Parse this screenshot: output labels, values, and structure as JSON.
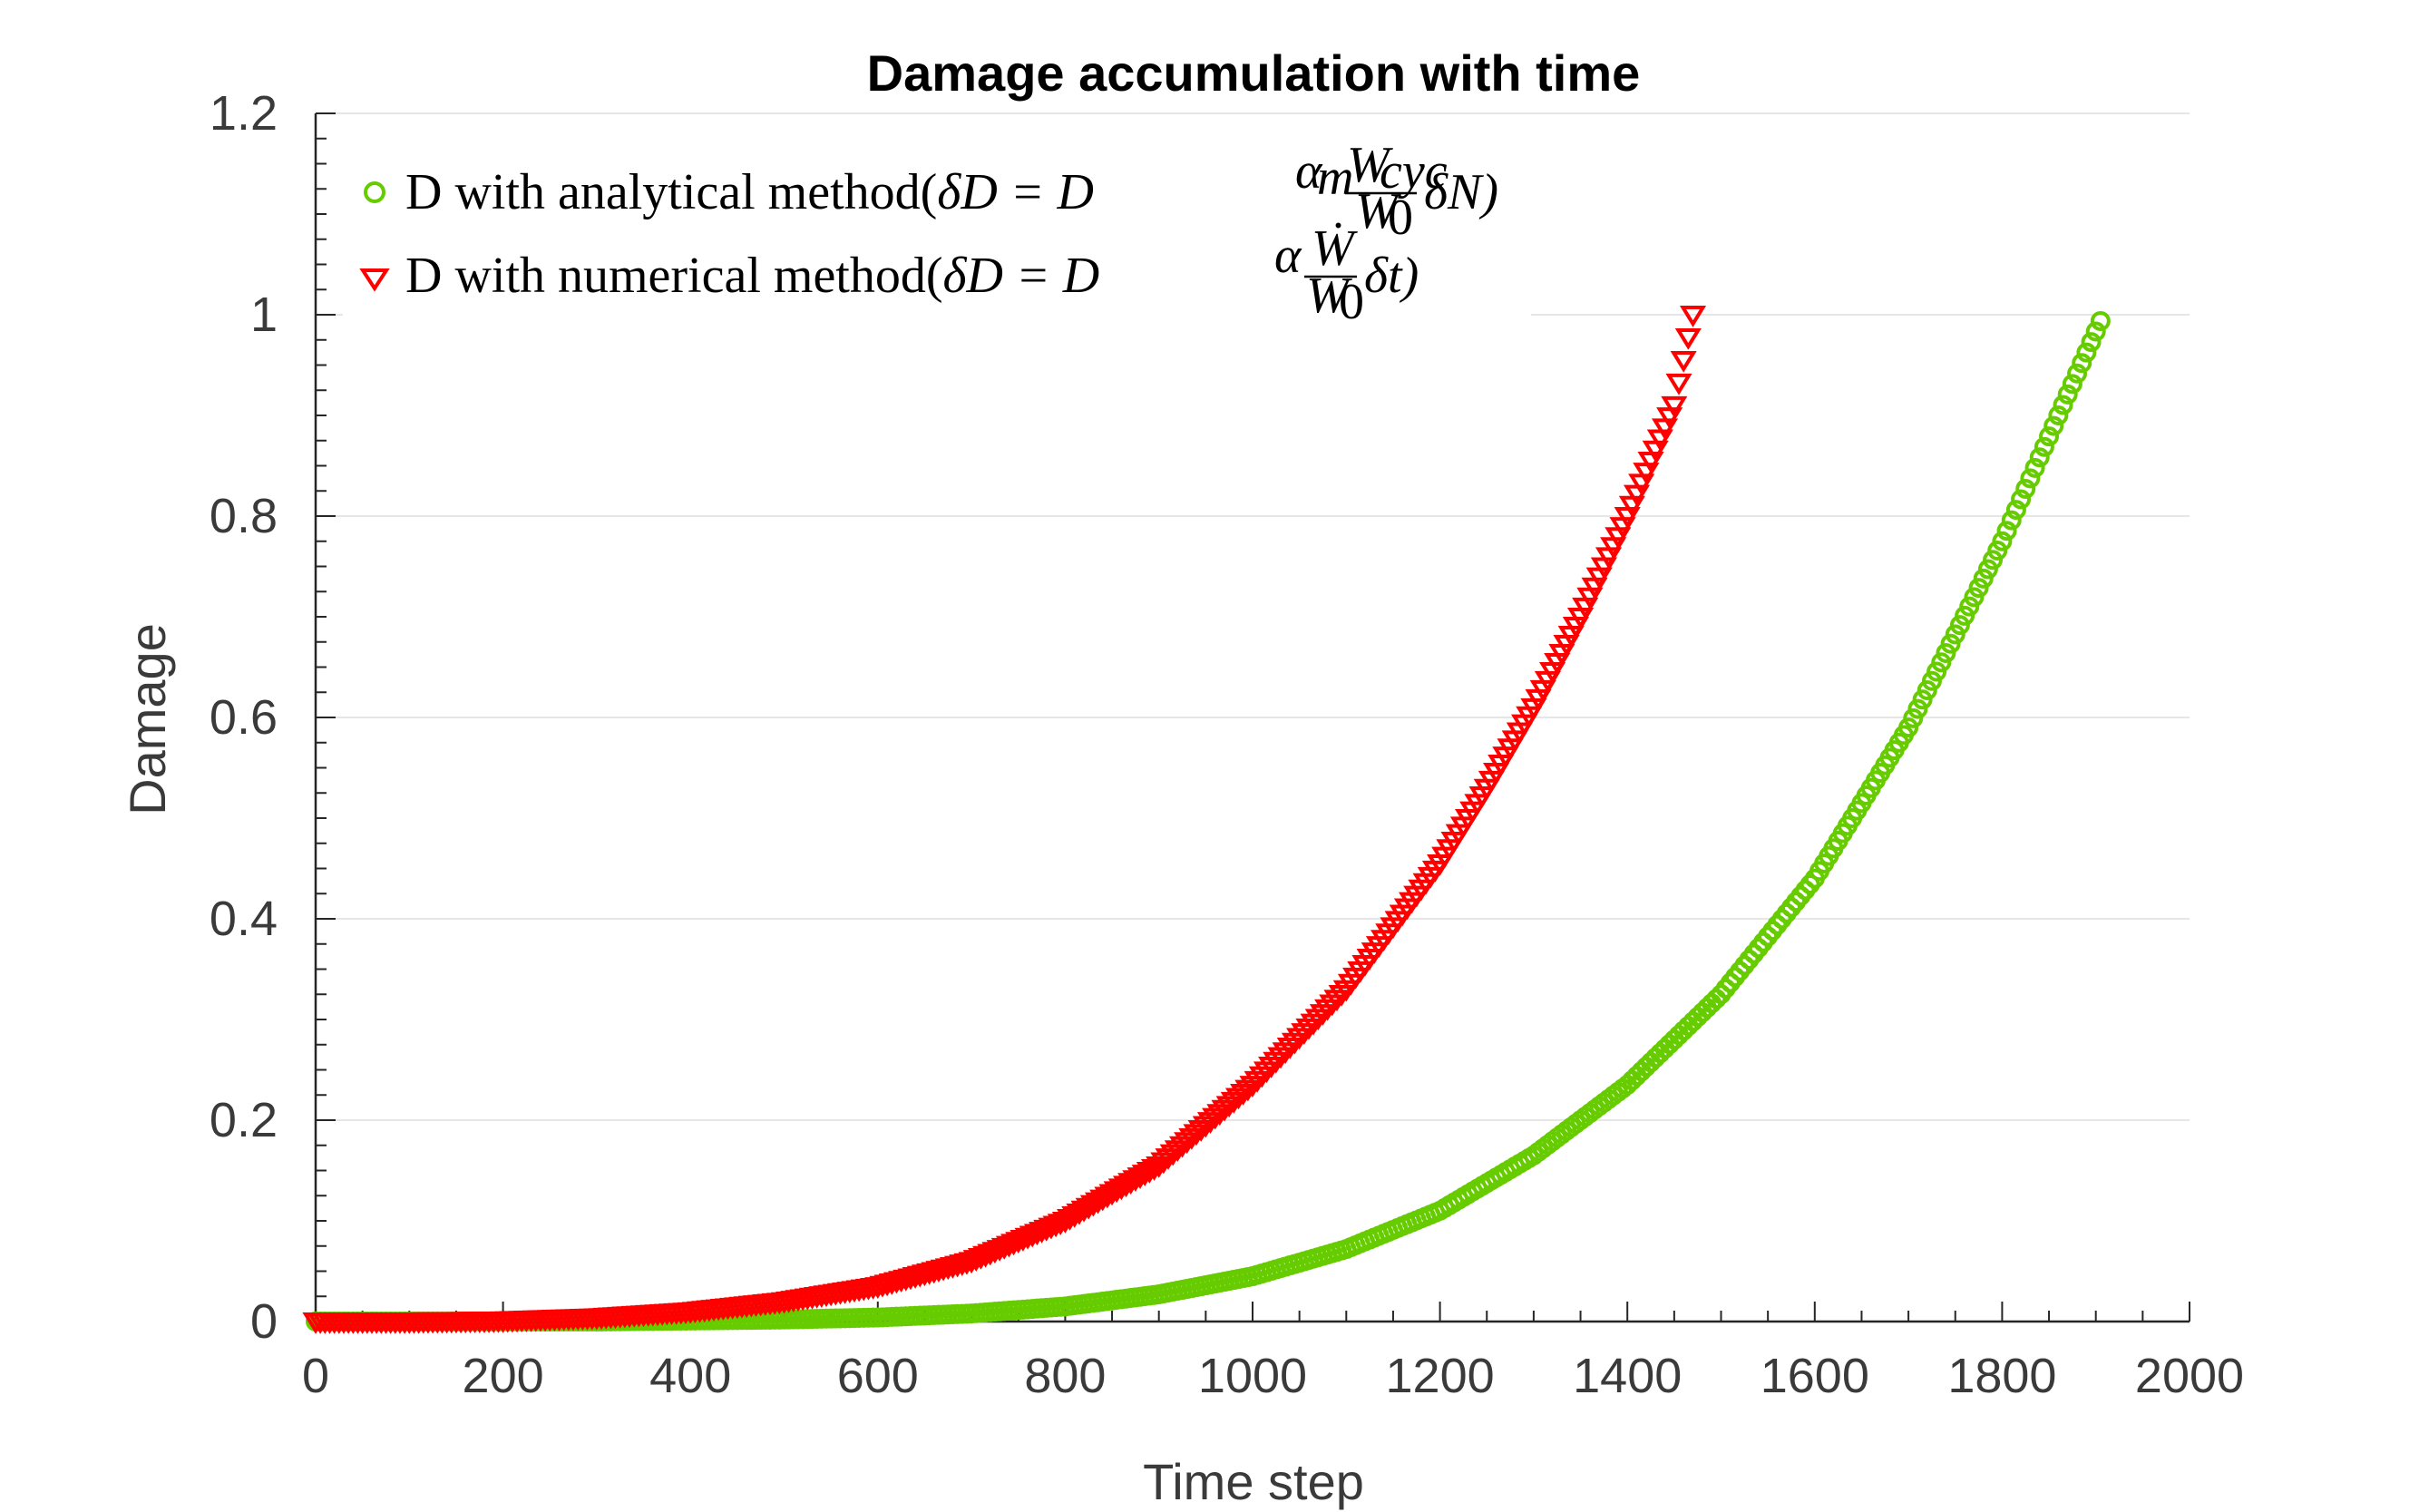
{
  "chart_data": {
    "type": "scatter",
    "title": "Damage accumulation with time",
    "xlabel": "Time step",
    "ylabel": "Damage",
    "xlim": [
      0,
      2000
    ],
    "ylim": [
      0,
      1.2
    ],
    "x_ticks": [
      0,
      200,
      400,
      600,
      800,
      1000,
      1200,
      1400,
      1600,
      1800,
      2000
    ],
    "x_tick_labels": [
      "0",
      "200",
      "400",
      "600",
      "800",
      "1000",
      "1200",
      "1400",
      "1600",
      "1800",
      "2000"
    ],
    "y_ticks": [
      0,
      0.2,
      0.4,
      0.6,
      0.8,
      1,
      1.2
    ],
    "y_tick_labels": [
      "0",
      "0.2",
      "0.4",
      "0.6",
      "0.8",
      "1",
      "1.2"
    ],
    "grid": "horizontal",
    "legend_position": "top-left",
    "series": [
      {
        "name": "D with analytical method(δD = D^{α_m} (W_cyc / W_0) δN)",
        "legend_parts": {
          "prefix": "D with analytical method(",
          "lhs": "δD = D",
          "sup": "α",
          "sup_sub": "m",
          "frac_num": "W",
          "frac_num_sub": "cyc",
          "frac_den": "W",
          "frac_den_sub": "0",
          "tail": "δN)"
        },
        "marker": "circle",
        "color": "#66cc00",
        "x": [
          0,
          100,
          200,
          300,
          400,
          500,
          600,
          700,
          800,
          900,
          1000,
          1100,
          1200,
          1300,
          1400,
          1500,
          1600,
          1700,
          1800,
          1908
        ],
        "y": [
          0,
          0,
          0,
          0,
          0.001,
          0.002,
          0.004,
          0.008,
          0.015,
          0.027,
          0.045,
          0.072,
          0.11,
          0.165,
          0.235,
          0.325,
          0.44,
          0.59,
          0.775,
          1.0
        ]
      },
      {
        "name": "D with numerical method(δD = D^{α} (Ẇ / W_0) δt)",
        "legend_parts": {
          "prefix": "D with numerical method(",
          "lhs": "δD = D",
          "sup": "α",
          "frac_num": "Ẇ",
          "frac_den": "W",
          "frac_den_sub": "0",
          "tail": "δt)"
        },
        "marker": "triangle-down",
        "color": "#ff0000",
        "x": [
          0,
          100,
          200,
          300,
          400,
          500,
          600,
          700,
          800,
          900,
          1000,
          1100,
          1200,
          1250,
          1300,
          1350,
          1400,
          1450,
          1470
        ],
        "y": [
          0,
          0,
          0.001,
          0.004,
          0.01,
          0.02,
          0.035,
          0.06,
          0.1,
          0.155,
          0.235,
          0.33,
          0.455,
          0.53,
          0.61,
          0.7,
          0.8,
          0.91,
          1.0
        ]
      }
    ]
  }
}
